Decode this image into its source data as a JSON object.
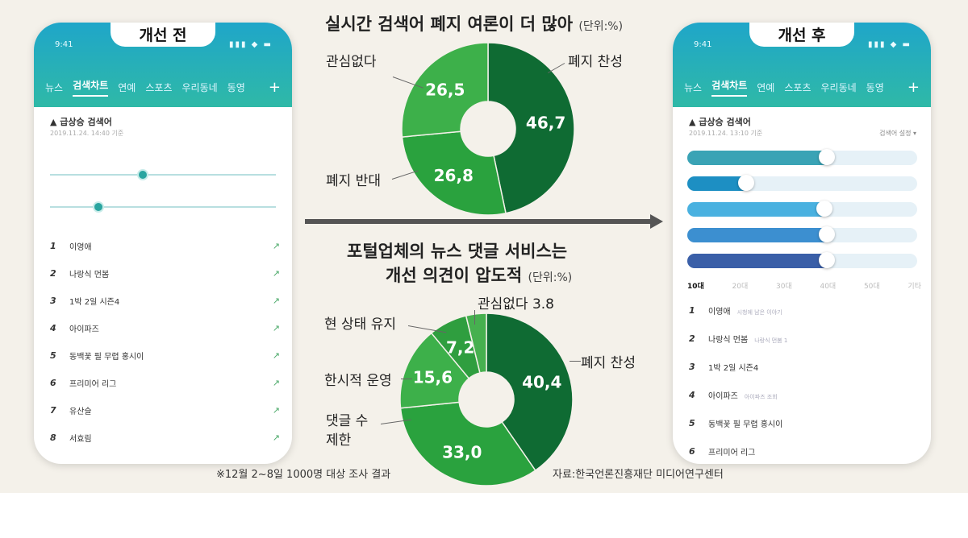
{
  "chart_data": [
    {
      "type": "pie",
      "title": "실시간 검색어 폐지 여론이 더 많아",
      "unit": "(단위:%)",
      "categories": [
        "폐지 찬성",
        "폐지 반대",
        "관심없다"
      ],
      "values": [
        46.7,
        26.8,
        26.5
      ],
      "value_labels": [
        "46,7",
        "26,8",
        "26,5"
      ],
      "colors": [
        "#0f6b33",
        "#2aa23e",
        "#3db04a"
      ]
    },
    {
      "type": "pie",
      "title_line1": "포털업체의 뉴스 댓글 서비스는",
      "title_line2": "개선 의견이 압도적",
      "unit": "(단위:%)",
      "categories": [
        "폐지 찬성",
        "댓글 수 제한",
        "한시적 운영",
        "현 상태 유지",
        "관심없다"
      ],
      "values": [
        40.4,
        33.0,
        15.6,
        7.2,
        3.8
      ],
      "value_labels": [
        "40,4",
        "33,0",
        "15,6",
        "7,2",
        "3.8"
      ],
      "colors": [
        "#0f6b33",
        "#2aa23e",
        "#3db04a",
        "#2f9e3f",
        "#46b04f"
      ]
    }
  ],
  "labels": {
    "d1_keep": "관심없다",
    "d1_against": "폐지 반대",
    "d1_for": "폐지 찬성",
    "d2_for": "폐지 찬성",
    "d2_status": "현 상태 유지",
    "d2_temp": "한시적 운영",
    "d2_limit_1": "댓글 수",
    "d2_limit_2": "제한",
    "d2_none": "관심없다 3.8"
  },
  "footnote": "※12월 2~8일 1000명 대상 조사 결과",
  "source": "자료:한국언론진흥재단 미디어연구센터",
  "phone_before": {
    "header": "개선 전",
    "time": "9:41",
    "tabs": [
      "뉴스",
      "검색차트",
      "연예",
      "스포츠",
      "우리동네",
      "동영"
    ],
    "section_title": "급상승 검색어",
    "section_sub": "2019.11.24. 14:40 기준",
    "ranks": [
      {
        "num": "1",
        "name": "이영애"
      },
      {
        "num": "2",
        "name": "나랑식 먼봄"
      },
      {
        "num": "3",
        "name": "1박 2일 시즌4"
      },
      {
        "num": "4",
        "name": "아이파즈"
      },
      {
        "num": "5",
        "name": "동백꽃 필 무렵 홍시이"
      },
      {
        "num": "6",
        "name": "프리미어 리그"
      },
      {
        "num": "7",
        "name": "유산슬"
      },
      {
        "num": "8",
        "name": "서효림"
      }
    ]
  },
  "phone_after": {
    "header": "개선 후",
    "time": "9:41",
    "tabs": [
      "뉴스",
      "검색차트",
      "연예",
      "스포츠",
      "우리동네",
      "동영"
    ],
    "section_title": "급상승 검색어",
    "section_sub": "2019.11.24. 13:10 기준",
    "setting": "검색어 설정",
    "bars": [
      {
        "level": 0.62,
        "color": "#3aa3b5"
      },
      {
        "level": 0.27,
        "color": "#1d8fc3"
      },
      {
        "level": 0.61,
        "color": "#49b1e0"
      },
      {
        "level": 0.62,
        "color": "#3c8fd0"
      },
      {
        "level": 0.62,
        "color": "#3a5fa8"
      }
    ],
    "age_tabs": [
      "10대",
      "20대",
      "30대",
      "40대",
      "50대",
      "기타"
    ],
    "ranks": [
      {
        "num": "1",
        "name": "이영애",
        "desc": "시청에 남은 이야기"
      },
      {
        "num": "2",
        "name": "나랑식 먼봄",
        "desc": "나랑식 먼봄 1"
      },
      {
        "num": "3",
        "name": "1박 2일 시즌4",
        "desc": ""
      },
      {
        "num": "4",
        "name": "아이파즈",
        "desc": "아이파즈 조회"
      },
      {
        "num": "5",
        "name": "동백꽃 필 무렵 홍시이",
        "desc": ""
      },
      {
        "num": "6",
        "name": "프리미어 리그",
        "desc": ""
      }
    ]
  }
}
